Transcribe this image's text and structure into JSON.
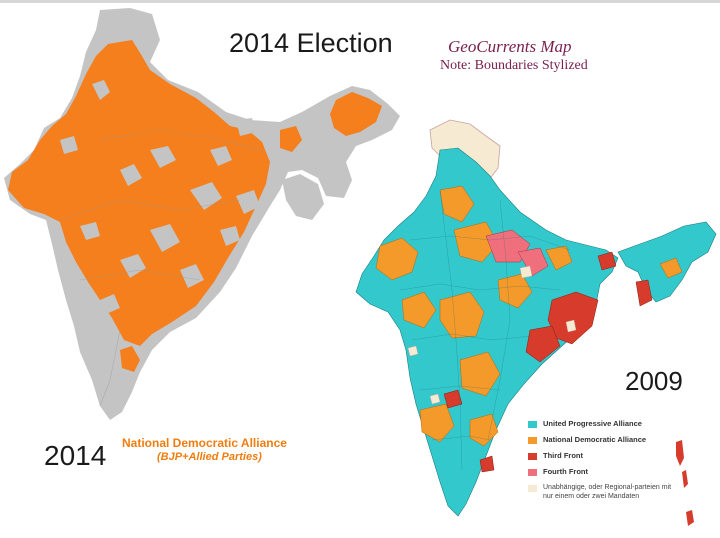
{
  "header": {
    "title": "2014 Election",
    "credit": "GeoCurrents Map",
    "note": "Note: Boundaries Stylized"
  },
  "left_map": {
    "year": "2014",
    "label": "National Democratic Alliance",
    "sublabel": "(BJP+Allied Parties)"
  },
  "right_map": {
    "year": "2009",
    "legend": [
      {
        "label": "United Progressive Alliance",
        "color": "#33c8cc"
      },
      {
        "label": "National Democratic Alliance",
        "color": "#f39a2a"
      },
      {
        "label": "Third Front",
        "color": "#d63b2b"
      },
      {
        "label": "Fourth Front",
        "color": "#ef6f7d"
      },
      {
        "label": "Unabhängige, oder Regional-parteien mit nur einem oder zwei Mandaten",
        "color": "#f7ead2"
      }
    ]
  },
  "colors": {
    "nda_orange": "#f47f1c",
    "other_gray": "#c4c4c4",
    "upa_cyan": "#33c8cc",
    "nda_2009": "#f39a2a",
    "third_front": "#d63b2b",
    "fourth_front": "#ef6f7d",
    "regional": "#f7ead2"
  }
}
